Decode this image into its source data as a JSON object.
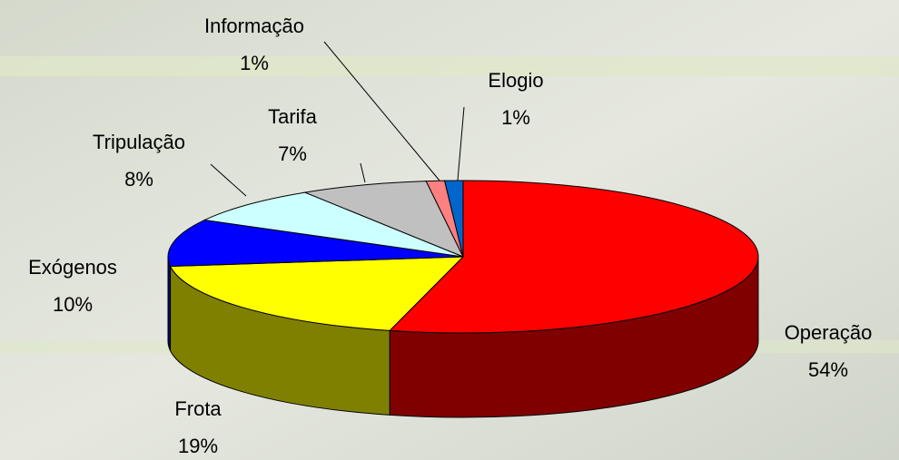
{
  "chart_data": {
    "type": "pie3d",
    "categories": [
      "Operação",
      "Frota",
      "Exógenos",
      "Tripulação",
      "Tarifa",
      "Informação",
      "Elogio"
    ],
    "values": [
      54,
      19,
      10,
      8,
      7,
      1,
      1
    ],
    "value_labels": [
      "54%",
      "19%",
      "10%",
      "8%",
      "7%",
      "1%",
      "1%"
    ],
    "colors": [
      "#ff0000",
      "#ffff00",
      "#0000ff",
      "#ccffff",
      "#c0c0c0",
      "#ff8080",
      "#0066cc"
    ]
  }
}
